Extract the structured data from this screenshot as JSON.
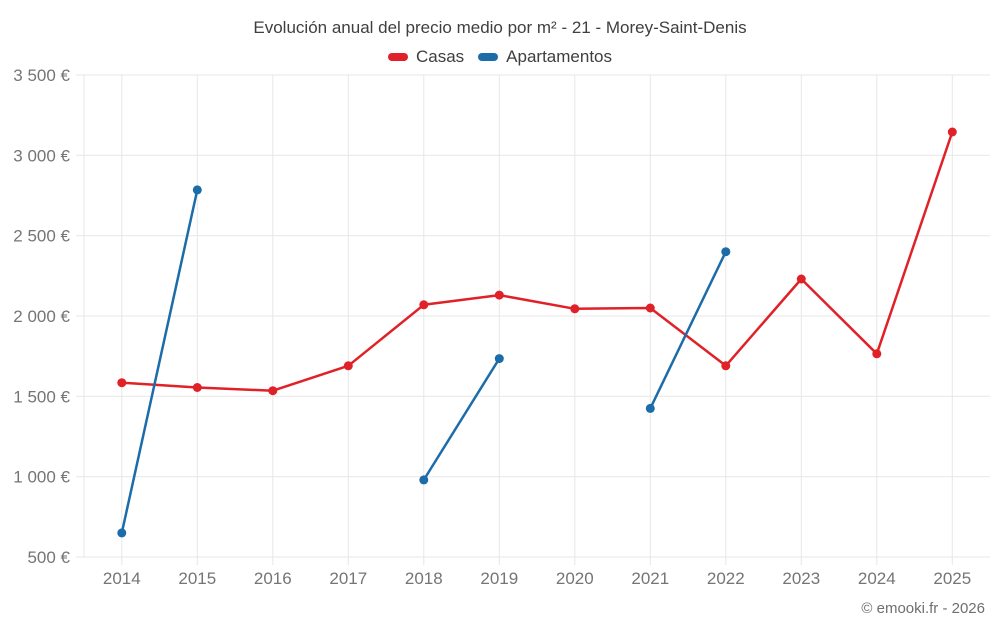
{
  "page": {
    "footer": "© emooki.fr - 2026"
  },
  "colors": {
    "background": "#ffffff",
    "grid": "#e7e7e7",
    "axis_text": "#757575",
    "title_text": "#3f3f3f",
    "footer_text": "#6f6f6f",
    "casas_red": "#e02128",
    "apartamentos_blue": "#1b6ca8"
  },
  "chart_data": {
    "type": "line",
    "title": "Evolución anual del precio medio por m² - 21 - Morey-Saint-Denis",
    "xlabel": "",
    "ylabel": "",
    "categories": [
      "2014",
      "2015",
      "2016",
      "2017",
      "2018",
      "2019",
      "2020",
      "2021",
      "2022",
      "2023",
      "2024",
      "2025"
    ],
    "series": [
      {
        "name": "Casas",
        "color": "#e02128",
        "values": [
          1585,
          1555,
          1535,
          1690,
          2070,
          2130,
          2045,
          2050,
          1690,
          2230,
          1765,
          3145
        ]
      },
      {
        "name": "Apartamentos",
        "color": "#1b6ca8",
        "values": [
          650,
          2785,
          null,
          null,
          980,
          1735,
          null,
          1425,
          2400,
          null,
          null,
          null
        ]
      }
    ],
    "ylim": [
      500,
      3500
    ],
    "y_ticks": [
      500,
      1000,
      1500,
      2000,
      2500,
      3000,
      3500
    ],
    "y_tick_labels": [
      "500 €",
      "1 000 €",
      "1 500 €",
      "2 000 €",
      "2 500 €",
      "3 000 €",
      "3 500 €"
    ],
    "grid": true,
    "legend_position": "top"
  }
}
